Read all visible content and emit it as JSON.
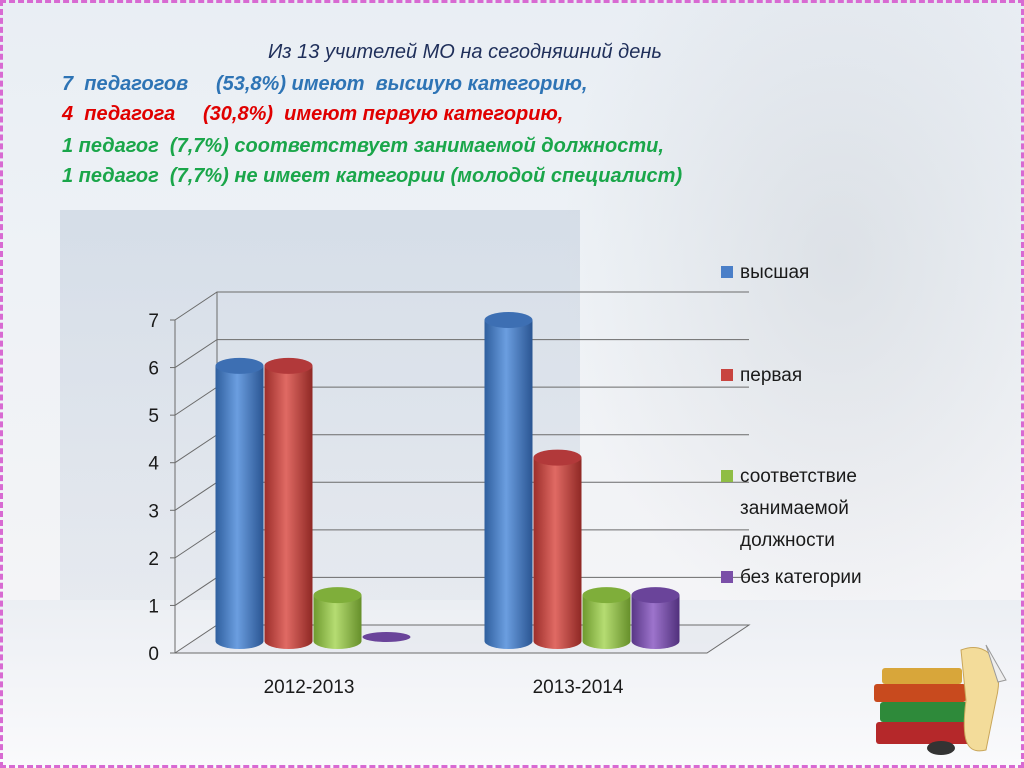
{
  "text": {
    "line0": "Из 13 учителей МО на сегодняшний день",
    "line1": "7  педагогов     (53,8%) имеют  высшую категорию,",
    "line2": "4  педагога     (30,8%)  имеют первую категорию,",
    "line3": "1 педагог  (7,7%) соответствует занимаемой должности,",
    "line4": "1 педагог  (7,7%) не имеет категории (молодой специалист)"
  },
  "chart_data": {
    "type": "bar",
    "categories": [
      "2012-2013",
      "2013-2014"
    ],
    "series": [
      {
        "name": "высшая",
        "values": [
          6,
          7
        ],
        "color": "#4a7fc8"
      },
      {
        "name": "первая",
        "values": [
          6,
          4
        ],
        "color": "#c8443f"
      },
      {
        "name": "соответствие занимаемой должности",
        "values": [
          1,
          1
        ],
        "color": "#8fbd45"
      },
      {
        "name": "без категории",
        "values": [
          0,
          1
        ],
        "color": "#7a4fa8"
      }
    ],
    "yticks": [
      "0",
      "1",
      "2",
      "3",
      "4",
      "5",
      "6",
      "7"
    ],
    "ylim": [
      0,
      7
    ],
    "grid": true,
    "legend": "right"
  },
  "colors": {
    "frame": "#d86ad2"
  }
}
